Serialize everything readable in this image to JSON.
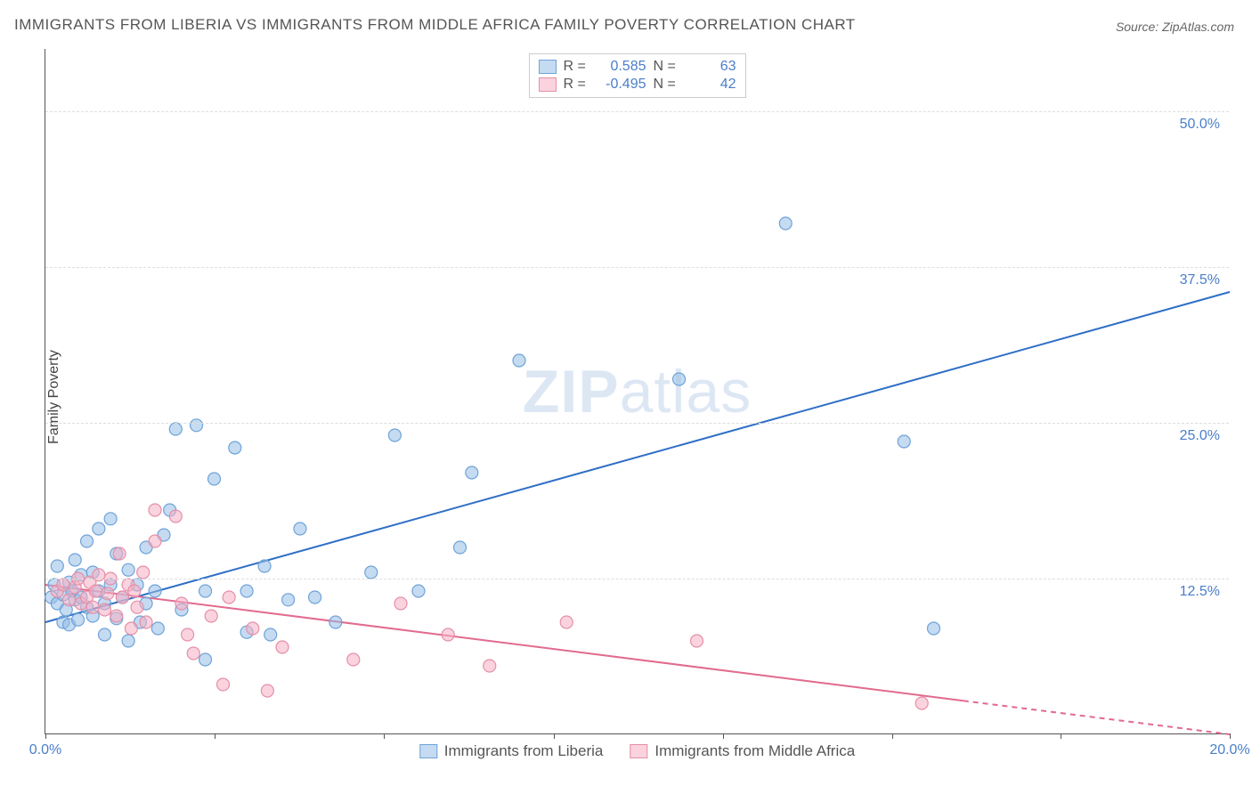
{
  "chart": {
    "type": "scatter-with-trendlines",
    "title": "IMMIGRANTS FROM LIBERIA VS IMMIGRANTS FROM MIDDLE AFRICA FAMILY POVERTY CORRELATION CHART",
    "source": "Source: ZipAtlas.com",
    "watermark_prefix": "ZIP",
    "watermark_suffix": "atlas",
    "ylabel": "Family Poverty",
    "background_color": "#ffffff",
    "grid_color": "#dddddd",
    "axis_line_color": "#555555",
    "tick_label_color": "#4a7ec9",
    "text_color": "#555555",
    "title_fontsize": 17,
    "tick_fontsize": 16,
    "label_fontsize": 16,
    "xlim": [
      0,
      20
    ],
    "ylim": [
      0,
      55
    ],
    "xtick_positions": [
      0,
      2.86,
      5.72,
      8.58,
      11.44,
      14.3,
      17.15,
      20
    ],
    "xtick_labels_shown": {
      "0": "0.0%",
      "20": "20.0%"
    },
    "ytick_positions": [
      12.5,
      25.0,
      37.5,
      50.0
    ],
    "ytick_labels": [
      "12.5%",
      "25.0%",
      "37.5%",
      "50.0%"
    ],
    "marker_radius": 7,
    "marker_stroke_width": 1.2,
    "trendline_width": 2,
    "series": [
      {
        "id": "liberia",
        "label": "Immigrants from Liberia",
        "fill_color": "rgba(150,190,230,0.55)",
        "stroke_color": "#6fa3d8",
        "line_color": "#2f6fc6",
        "R": "0.585",
        "N": "63",
        "trend": {
          "x1": 0,
          "y1": 9.0,
          "x2": 20,
          "y2": 35.5,
          "dashed_from_x": null
        },
        "points": [
          [
            0.1,
            11.0
          ],
          [
            0.15,
            12.0
          ],
          [
            0.2,
            10.5
          ],
          [
            0.2,
            13.5
          ],
          [
            0.3,
            11.2
          ],
          [
            0.3,
            9.0
          ],
          [
            0.35,
            10.0
          ],
          [
            0.4,
            12.2
          ],
          [
            0.4,
            8.8
          ],
          [
            0.45,
            11.5
          ],
          [
            0.5,
            10.8
          ],
          [
            0.5,
            14.0
          ],
          [
            0.55,
            9.2
          ],
          [
            0.6,
            11.0
          ],
          [
            0.6,
            12.8
          ],
          [
            0.7,
            10.2
          ],
          [
            0.7,
            15.5
          ],
          [
            0.8,
            9.5
          ],
          [
            0.8,
            13.0
          ],
          [
            0.9,
            11.5
          ],
          [
            0.9,
            16.5
          ],
          [
            1.0,
            8.0
          ],
          [
            1.0,
            10.5
          ],
          [
            1.1,
            12.0
          ],
          [
            1.1,
            17.3
          ],
          [
            1.2,
            9.3
          ],
          [
            1.2,
            14.5
          ],
          [
            1.3,
            11.0
          ],
          [
            1.4,
            7.5
          ],
          [
            1.4,
            13.2
          ],
          [
            1.55,
            12.0
          ],
          [
            1.6,
            9.0
          ],
          [
            1.7,
            10.5
          ],
          [
            1.7,
            15.0
          ],
          [
            1.85,
            11.5
          ],
          [
            1.9,
            8.5
          ],
          [
            2.0,
            16.0
          ],
          [
            2.1,
            18.0
          ],
          [
            2.2,
            24.5
          ],
          [
            2.3,
            10.0
          ],
          [
            2.55,
            24.8
          ],
          [
            2.7,
            11.5
          ],
          [
            2.7,
            6.0
          ],
          [
            2.85,
            20.5
          ],
          [
            3.2,
            23.0
          ],
          [
            3.4,
            8.2
          ],
          [
            3.4,
            11.5
          ],
          [
            3.7,
            13.5
          ],
          [
            3.8,
            8.0
          ],
          [
            4.1,
            10.8
          ],
          [
            4.3,
            16.5
          ],
          [
            4.55,
            11.0
          ],
          [
            4.9,
            9.0
          ],
          [
            5.5,
            13.0
          ],
          [
            5.9,
            24.0
          ],
          [
            6.3,
            11.5
          ],
          [
            7.0,
            15.0
          ],
          [
            7.2,
            21.0
          ],
          [
            8.0,
            30.0
          ],
          [
            10.7,
            28.5
          ],
          [
            12.5,
            41.0
          ],
          [
            14.5,
            23.5
          ],
          [
            15.0,
            8.5
          ]
        ]
      },
      {
        "id": "middle_africa",
        "label": "Immigrants from Middle Africa",
        "fill_color": "rgba(245,175,195,0.55)",
        "stroke_color": "#e58fa8",
        "line_color": "#e26a8e",
        "R": "-0.495",
        "N": "42",
        "trend": {
          "x1": 0,
          "y1": 12.0,
          "x2": 20,
          "y2": 0.0,
          "dashed_from_x": 15.5
        },
        "points": [
          [
            0.2,
            11.5
          ],
          [
            0.3,
            12.0
          ],
          [
            0.4,
            10.8
          ],
          [
            0.5,
            11.8
          ],
          [
            0.55,
            12.5
          ],
          [
            0.6,
            10.5
          ],
          [
            0.7,
            11.0
          ],
          [
            0.75,
            12.2
          ],
          [
            0.8,
            10.2
          ],
          [
            0.85,
            11.5
          ],
          [
            0.9,
            12.8
          ],
          [
            1.0,
            10.0
          ],
          [
            1.05,
            11.3
          ],
          [
            1.1,
            12.5
          ],
          [
            1.2,
            9.5
          ],
          [
            1.25,
            14.5
          ],
          [
            1.3,
            11.0
          ],
          [
            1.4,
            12.0
          ],
          [
            1.45,
            8.5
          ],
          [
            1.5,
            11.5
          ],
          [
            1.55,
            10.2
          ],
          [
            1.65,
            13.0
          ],
          [
            1.7,
            9.0
          ],
          [
            1.85,
            15.5
          ],
          [
            1.85,
            18.0
          ],
          [
            2.2,
            17.5
          ],
          [
            2.3,
            10.5
          ],
          [
            2.4,
            8.0
          ],
          [
            2.5,
            6.5
          ],
          [
            2.8,
            9.5
          ],
          [
            3.0,
            4.0
          ],
          [
            3.1,
            11.0
          ],
          [
            3.5,
            8.5
          ],
          [
            3.75,
            3.5
          ],
          [
            4.0,
            7.0
          ],
          [
            5.2,
            6.0
          ],
          [
            6.0,
            10.5
          ],
          [
            6.8,
            8.0
          ],
          [
            7.5,
            5.5
          ],
          [
            8.8,
            9.0
          ],
          [
            11.0,
            7.5
          ],
          [
            14.8,
            2.5
          ]
        ]
      }
    ]
  }
}
